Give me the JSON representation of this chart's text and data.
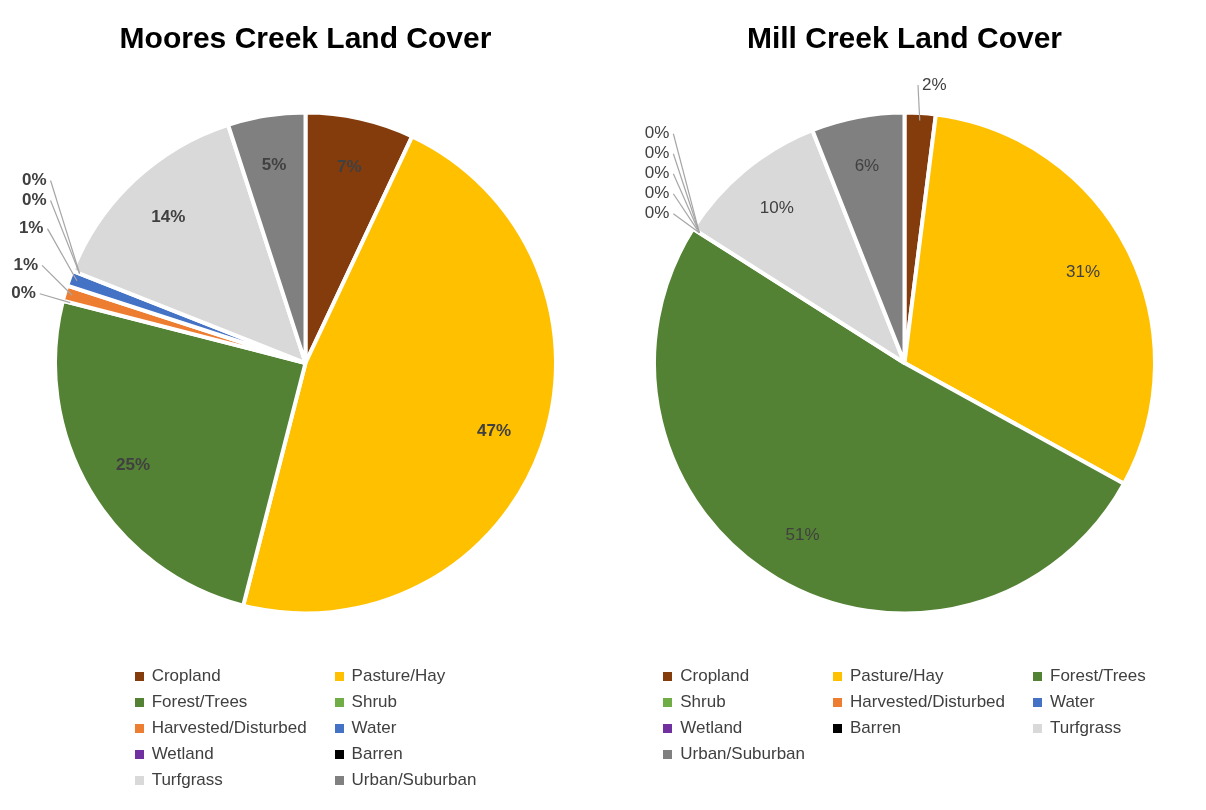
{
  "chart_data": [
    {
      "type": "pie",
      "title": "Moores Creek Land Cover",
      "categories": [
        "Cropland",
        "Pasture/Hay",
        "Forest/Trees",
        "Shrub",
        "Harvested/Disturbed",
        "Water",
        "Wetland",
        "Barren",
        "Turfgrass",
        "Urban/Suburban"
      ],
      "values": [
        7,
        47,
        25,
        0,
        1,
        1,
        0,
        0,
        14,
        5
      ],
      "value_labels": [
        "7%",
        "47%",
        "25%",
        "0%",
        "1%",
        "1%",
        "0%",
        "0%",
        "14%",
        "5%"
      ],
      "colors": [
        "#843c0c",
        "#ffc000",
        "#548235",
        "#70ad47",
        "#ed7d31",
        "#4472c4",
        "#7030a0",
        "#000000",
        "#d9d9d9",
        "#808080"
      ],
      "legend": "bottom"
    },
    {
      "type": "pie",
      "title": "Mill Creek Land Cover",
      "categories": [
        "Cropland",
        "Pasture/Hay",
        "Forest/Trees",
        "Shrub",
        "Harvested/Disturbed",
        "Water",
        "Wetland",
        "Barren",
        "Turfgrass",
        "Urban/Suburban"
      ],
      "values": [
        2,
        31,
        51,
        0,
        0,
        0,
        0,
        0,
        10,
        6
      ],
      "value_labels": [
        "2%",
        "31%",
        "51%",
        "0%",
        "0%",
        "0%",
        "0%",
        "0%",
        "10%",
        "6%"
      ],
      "colors": [
        "#843c0c",
        "#ffc000",
        "#548235",
        "#70ad47",
        "#ed7d31",
        "#4472c4",
        "#7030a0",
        "#000000",
        "#d9d9d9",
        "#808080"
      ],
      "legend": "bottom"
    }
  ]
}
